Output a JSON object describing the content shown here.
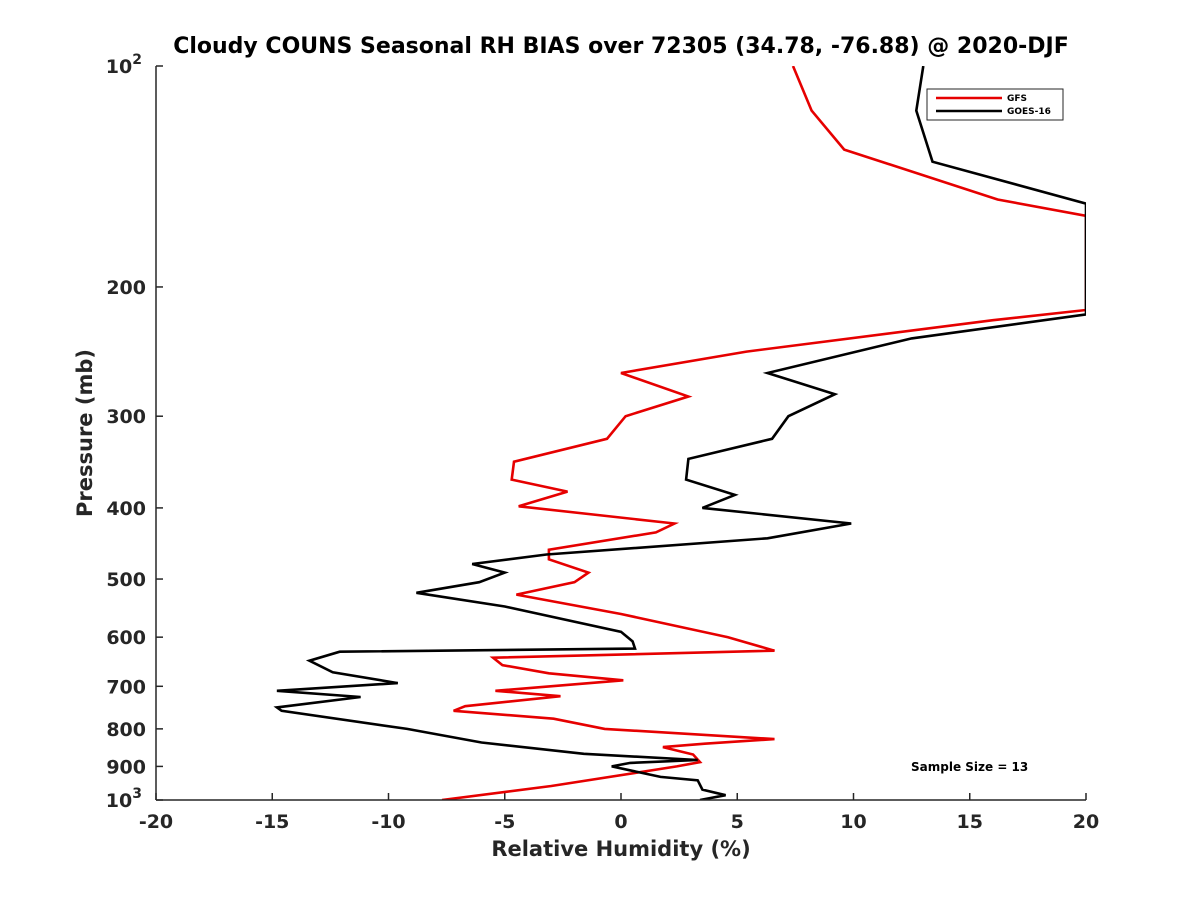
{
  "chart_data": {
    "type": "line",
    "title": "Cloudy COUNS Seasonal RH BIAS over 72305 (34.78, -76.88) @ 2020-DJF",
    "xlabel": "Relative Humidity (%)",
    "ylabel": "Pressure (mb)",
    "xlim": [
      -20,
      20
    ],
    "ylim": [
      100,
      1000
    ],
    "yscale": "log",
    "y_reversed": true,
    "x_ticks": [
      -20,
      -15,
      -10,
      -5,
      0,
      5,
      10,
      15,
      20
    ],
    "x_tick_labels": [
      "-20",
      "-15",
      "-10",
      "-5",
      "0",
      "5",
      "10",
      "15",
      "20"
    ],
    "y_ticks": [
      {
        "value": 100,
        "base": "10",
        "exp": "2"
      },
      {
        "value": 200,
        "label": "200"
      },
      {
        "value": 300,
        "label": "300"
      },
      {
        "value": 400,
        "label": "400"
      },
      {
        "value": 500,
        "label": "500"
      },
      {
        "value": 600,
        "label": "600"
      },
      {
        "value": 700,
        "label": "700"
      },
      {
        "value": 800,
        "label": "800"
      },
      {
        "value": 900,
        "label": "900"
      },
      {
        "value": 1000,
        "base": "10",
        "exp": "3"
      }
    ],
    "legend_position": "top-right",
    "annotation": "Sample Size = 13",
    "series": [
      {
        "name": "GFS",
        "color": "#e60000",
        "points": [
          [
            7.4,
            100
          ],
          [
            8.2,
            115
          ],
          [
            9.6,
            130
          ],
          [
            16.2,
            152
          ],
          [
            20.0,
            160
          ],
          [
            20.0,
            215
          ],
          [
            16.0,
            222
          ],
          [
            5.4,
            245
          ],
          [
            0.0,
            262
          ],
          [
            2.9,
            282
          ],
          [
            0.2,
            300
          ],
          [
            -0.6,
            322
          ],
          [
            -4.6,
            346
          ],
          [
            -4.7,
            366
          ],
          [
            -2.3,
            380
          ],
          [
            -4.4,
            398
          ],
          [
            2.3,
            420
          ],
          [
            1.5,
            432
          ],
          [
            -3.1,
            456
          ],
          [
            -3.1,
            470
          ],
          [
            -1.4,
            490
          ],
          [
            -2.0,
            505
          ],
          [
            -4.5,
            525
          ],
          [
            0.0,
            558
          ],
          [
            4.6,
            600
          ],
          [
            6.6,
            626
          ],
          [
            -5.5,
            640
          ],
          [
            -5.1,
            655
          ],
          [
            -3.1,
            672
          ],
          [
            0.1,
            687
          ],
          [
            -5.4,
            710
          ],
          [
            -2.6,
            722
          ],
          [
            -6.7,
            745
          ],
          [
            -7.2,
            756
          ],
          [
            -2.9,
            775
          ],
          [
            -0.7,
            800
          ],
          [
            6.6,
            826
          ],
          [
            3.6,
            838
          ],
          [
            1.8,
            847
          ],
          [
            3.1,
            867
          ],
          [
            3.4,
            888
          ],
          [
            2.4,
            900
          ],
          [
            -3.0,
            957
          ],
          [
            -7.7,
            1000
          ]
        ]
      },
      {
        "name": "GOES-16",
        "color": "#000000",
        "points": [
          [
            13.0,
            100
          ],
          [
            12.7,
            115
          ],
          [
            13.4,
            135
          ],
          [
            20.0,
            154
          ],
          [
            20.0,
            218
          ],
          [
            12.5,
            235
          ],
          [
            6.3,
            262
          ],
          [
            9.2,
            280
          ],
          [
            7.2,
            300
          ],
          [
            6.5,
            322
          ],
          [
            2.9,
            343
          ],
          [
            2.8,
            366
          ],
          [
            4.9,
            384
          ],
          [
            3.5,
            400
          ],
          [
            9.9,
            420
          ],
          [
            6.3,
            440
          ],
          [
            -3.2,
            463
          ],
          [
            -6.4,
            477
          ],
          [
            -5.0,
            490
          ],
          [
            -6.1,
            505
          ],
          [
            -8.8,
            522
          ],
          [
            -5.0,
            545
          ],
          [
            0.0,
            590
          ],
          [
            0.5,
            608
          ],
          [
            0.6,
            622
          ],
          [
            -12.1,
            628
          ],
          [
            -13.4,
            646
          ],
          [
            -12.4,
            670
          ],
          [
            -9.6,
            693
          ],
          [
            -14.8,
            710
          ],
          [
            -11.2,
            724
          ],
          [
            -14.8,
            748
          ],
          [
            -14.6,
            756
          ],
          [
            -9.2,
            800
          ],
          [
            -6.0,
            835
          ],
          [
            -1.6,
            865
          ],
          [
            3.3,
            882
          ],
          [
            0.4,
            890
          ],
          [
            -0.4,
            900
          ],
          [
            0.8,
            917
          ],
          [
            1.7,
            930
          ],
          [
            3.3,
            940
          ],
          [
            3.5,
            968
          ],
          [
            4.5,
            985
          ],
          [
            3.4,
            1000
          ]
        ]
      }
    ]
  }
}
